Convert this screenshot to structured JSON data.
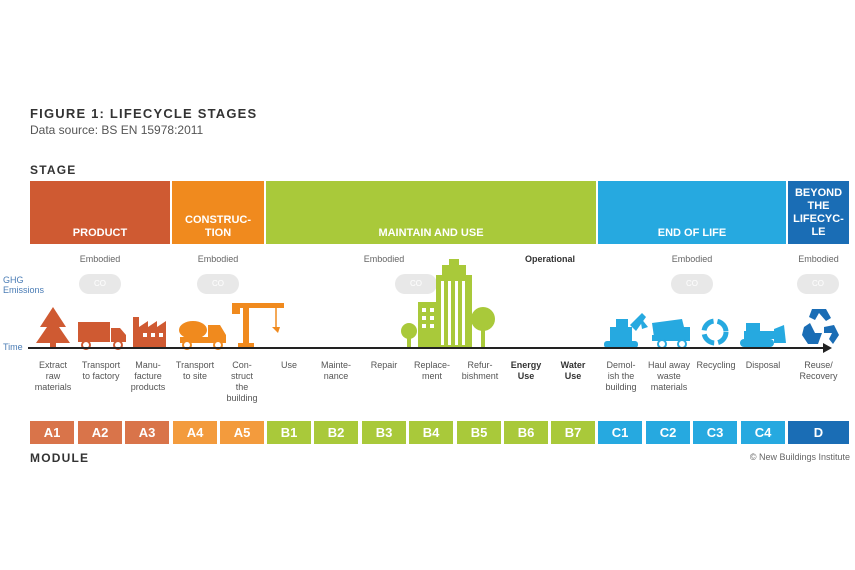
{
  "figure": {
    "title": "FIGURE 1: LIFECYCLE STAGES",
    "source": "Data source: BS EN 15978:2011",
    "stage_heading": "STAGE",
    "module_heading": "MODULE",
    "credit": "© New Buildings Institute",
    "ghg_label": "GHG\nEmissions",
    "time_label": "Time"
  },
  "colors": {
    "product": "#cf5a32",
    "product_module": "#d9744a",
    "construction": "#f08a1e",
    "construction_module": "#f39b3d",
    "maintain": "#a9c93a",
    "end_of_life": "#26a9e0",
    "beyond": "#1a6db5",
    "cloud": "#e8e8e8"
  },
  "stages": [
    {
      "label": "PRODUCT"
    },
    {
      "label": "CONSTRUC-\nTION"
    },
    {
      "label": "MAINTAIN AND USE"
    },
    {
      "label": "END OF LIFE"
    },
    {
      "label": "BEYOND\nTHE\nLIFECYC-\nLE"
    }
  ],
  "emissions": [
    {
      "label": "Embodied",
      "cloud": "CO"
    },
    {
      "label": "Embodied",
      "cloud": "CO"
    },
    {
      "label": "Embodied",
      "cloud": "CO"
    },
    {
      "label": "Operational"
    },
    {
      "label": "Embodied",
      "cloud": "CO"
    },
    {
      "label": "Embodied",
      "cloud": "CO"
    }
  ],
  "steps": [
    {
      "label": "Extract\nraw\nmaterials"
    },
    {
      "label": "Transport\nto factory"
    },
    {
      "label": "Manu-\nfacture\nproducts"
    },
    {
      "label": "Transport\nto site"
    },
    {
      "label": "Con-\nstruct\nthe\nbuilding"
    },
    {
      "label": "Use"
    },
    {
      "label": "Mainte-\nnance"
    },
    {
      "label": "Repair"
    },
    {
      "label": "Replace-\nment"
    },
    {
      "label": "Refur-\nbishment"
    },
    {
      "label": "Energy\nUse"
    },
    {
      "label": "Water\nUse"
    },
    {
      "label": "Demol-\nish the\nbuilding"
    },
    {
      "label": "Haul away\nwaste\nmaterials"
    },
    {
      "label": "Recycling"
    },
    {
      "label": "Disposal"
    },
    {
      "label": "Reuse/\nRecovery"
    }
  ],
  "modules": [
    {
      "code": "A1"
    },
    {
      "code": "A2"
    },
    {
      "code": "A3"
    },
    {
      "code": "A4"
    },
    {
      "code": "A5"
    },
    {
      "code": "B1"
    },
    {
      "code": "B2"
    },
    {
      "code": "B3"
    },
    {
      "code": "B4"
    },
    {
      "code": "B5"
    },
    {
      "code": "B6"
    },
    {
      "code": "B7"
    },
    {
      "code": "C1"
    },
    {
      "code": "C2"
    },
    {
      "code": "C3"
    },
    {
      "code": "C4"
    },
    {
      "code": "D"
    }
  ],
  "icons": [
    "tree-icon",
    "truck-icon",
    "factory-icon",
    "cement-mixer-icon",
    "crane-icon",
    "city-buildings-icon",
    "excavator-icon",
    "dump-truck-icon",
    "recycling-icon",
    "bulldozer-icon",
    "reuse-recycle-icon"
  ]
}
